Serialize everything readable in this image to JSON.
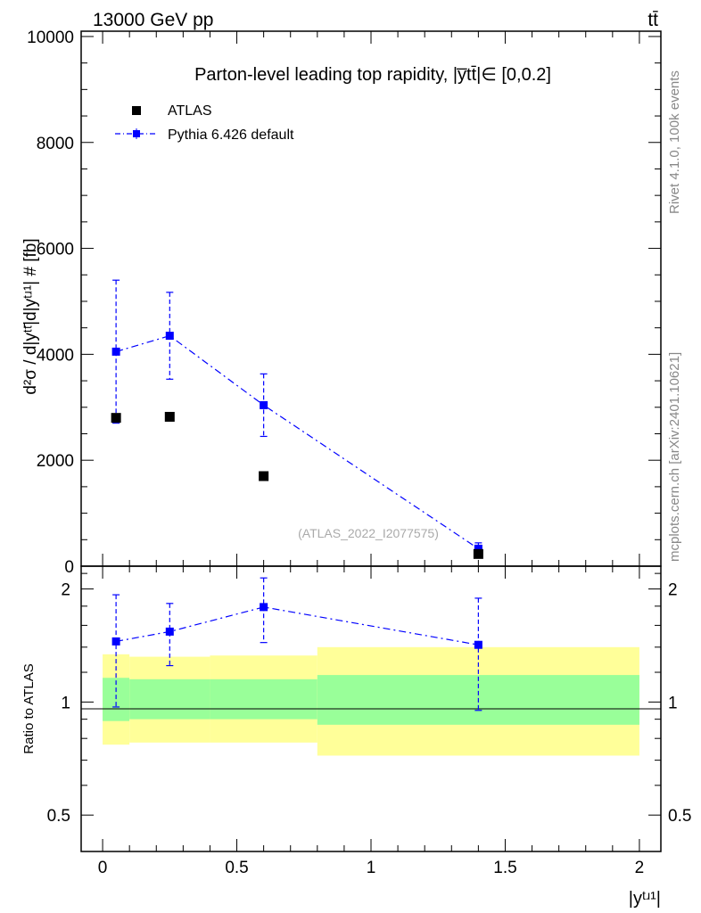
{
  "header": {
    "energy_label": "13000 GeV pp",
    "process_label": "tt̄",
    "title": "Parton-level leading top rapidity, |y̅tt̄|∈ [0,0.2]"
  },
  "side_notes": {
    "rivet": "Rivet 4.1.0,  100k events",
    "mcplots": "mcplots.cern.ch [arXiv:2401.10621]"
  },
  "watermark": "(ATLAS_2022_I2077575)",
  "legend": {
    "atlas": "ATLAS",
    "pythia": "Pythia 6.426 default"
  },
  "axes": {
    "main_ylabel": "d²σ / d|yᵗᵗ̄|d|yᵗʴ¹| # [fb]",
    "ratio_ylabel": "Ratio to ATLAS",
    "xlabel": "|yᵗʴ¹|"
  },
  "colors": {
    "data": "#000000",
    "mc": "#0000ff",
    "band_inner": "#99ff99",
    "band_outer": "#ffff99"
  },
  "chart_data": [
    {
      "type": "scatter",
      "name": "main",
      "xlim": [
        -0.08,
        2.08
      ],
      "ylim": [
        0,
        10100
      ],
      "yticks": [
        0,
        2000,
        4000,
        6000,
        8000,
        10000
      ],
      "ytick_labels": [
        "0",
        "2000",
        "4000",
        "6000",
        "8000",
        "10000"
      ],
      "series": [
        {
          "name": "ATLAS",
          "x": [
            0.05,
            0.25,
            0.6,
            1.4
          ],
          "values": [
            2800,
            2820,
            1700,
            230
          ]
        },
        {
          "name": "Pythia 6.426 default",
          "x": [
            0.05,
            0.25,
            0.6,
            1.4
          ],
          "values": [
            4050,
            4350,
            3040,
            330
          ],
          "err_low": [
            1350,
            820,
            590,
            110
          ],
          "err_high": [
            1350,
            820,
            590,
            110
          ]
        }
      ]
    },
    {
      "type": "line",
      "name": "ratio",
      "xlim": [
        -0.08,
        2.08
      ],
      "ylim": [
        0.4,
        2.3
      ],
      "yticks": [
        0.5,
        1,
        2
      ],
      "ytick_labels": [
        "0.5",
        "1",
        "2"
      ],
      "xticks": [
        0,
        0.5,
        1,
        1.5,
        2
      ],
      "xtick_labels": [
        "0",
        "0.5",
        "1",
        "1.5",
        "2"
      ],
      "bins": [
        {
          "x_low": 0.0,
          "x_high": 0.1,
          "inner_low": 0.89,
          "inner_high": 1.16,
          "outer_low": 0.77,
          "outer_high": 1.34
        },
        {
          "x_low": 0.1,
          "x_high": 0.4,
          "inner_low": 0.9,
          "inner_high": 1.15,
          "outer_low": 0.78,
          "outer_high": 1.32
        },
        {
          "x_low": 0.4,
          "x_high": 0.8,
          "inner_low": 0.9,
          "inner_high": 1.15,
          "outer_low": 0.78,
          "outer_high": 1.33
        },
        {
          "x_low": 0.8,
          "x_high": 2.0,
          "inner_low": 0.87,
          "inner_high": 1.18,
          "outer_low": 0.72,
          "outer_high": 1.4
        }
      ],
      "series": [
        {
          "name": "Pythia 6.426 default",
          "x": [
            0.05,
            0.25,
            0.6,
            1.4
          ],
          "values": [
            1.45,
            1.54,
            1.79,
            1.42
          ],
          "err_low": [
            0.48,
            0.29,
            0.35,
            0.47
          ],
          "err_high": [
            0.48,
            0.29,
            0.35,
            0.47
          ]
        }
      ]
    }
  ]
}
